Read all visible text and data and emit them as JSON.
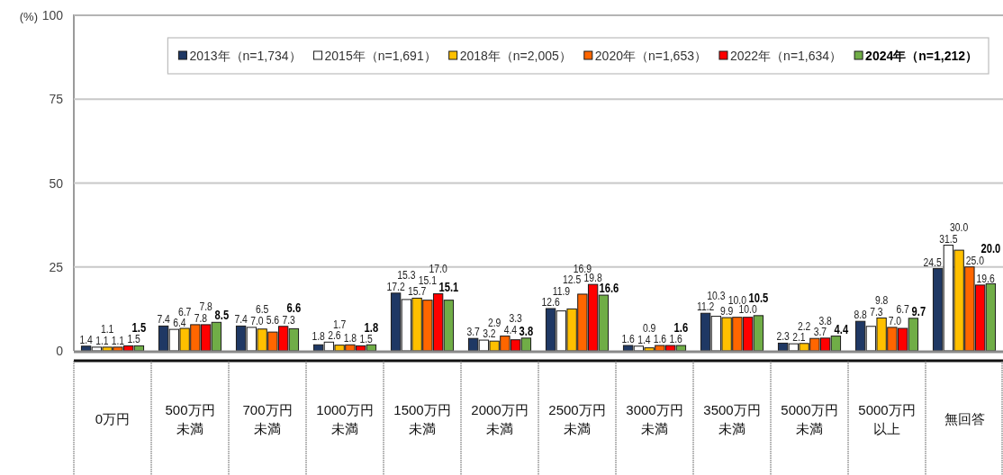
{
  "chart_data": {
    "type": "bar",
    "ylabel": "(%)",
    "categories": [
      "0万円",
      "500万円未満",
      "700万円未満",
      "1000万円未満",
      "1500万円未満",
      "2000万円未満",
      "2500万円未満",
      "3000万円未満",
      "3500万円未満",
      "5000万円未満",
      "5000万円以上",
      "無回答"
    ],
    "series": [
      {
        "name": "2013年（n=1,734）",
        "color": "#1f3864",
        "values": [
          1.4,
          7.4,
          7.4,
          1.8,
          17.2,
          3.7,
          12.6,
          1.6,
          11.2,
          2.3,
          8.8,
          24.5
        ],
        "value_labels": [
          "1.4",
          "7.4",
          "7.4",
          "1.8",
          "17.2",
          "3.7",
          "12.6",
          "1.6",
          "11.2",
          "2.3",
          "8.8",
          "24.5"
        ]
      },
      {
        "name": "2015年（n=1,691）",
        "color": "#ffffff",
        "values": [
          1.1,
          6.4,
          7.0,
          2.6,
          15.3,
          3.2,
          11.9,
          1.4,
          10.3,
          2.1,
          7.3,
          31.5
        ],
        "value_labels": [
          "1.1",
          "6.4",
          "7.0",
          "2.6",
          "15.3",
          "3.2",
          "11.9",
          "1.4",
          "10.3",
          "2.1",
          "7.3",
          "31.5"
        ]
      },
      {
        "name": "2018年（n=2,005）",
        "color": "#ffc000",
        "values": [
          1.1,
          6.7,
          6.5,
          1.7,
          15.7,
          2.9,
          12.5,
          0.9,
          9.9,
          2.2,
          9.8,
          30.0
        ],
        "value_labels": [
          "1.1",
          "6.7",
          "6.5",
          "1.7",
          "15.7",
          "2.9",
          "12.5",
          "0.9",
          "9.9",
          "2.2",
          "9.8",
          "30.0"
        ]
      },
      {
        "name": "2020年（n=1,653）",
        "color": "#ff6600",
        "values": [
          1.1,
          7.8,
          5.6,
          1.8,
          15.1,
          4.4,
          16.9,
          1.6,
          10.0,
          3.7,
          7.0,
          25.0
        ],
        "value_labels": [
          "1.1",
          "7.8",
          "5.6",
          "1.8",
          "15.1",
          "4.4",
          "16.9",
          "1.6",
          "10.0",
          "3.7",
          "7.0",
          "25.0"
        ]
      },
      {
        "name": "2022年（n=1,634）",
        "color": "#ff0000",
        "values": [
          1.5,
          7.8,
          7.3,
          1.5,
          17.0,
          3.3,
          19.8,
          1.6,
          10.0,
          3.8,
          6.7,
          19.6
        ],
        "value_labels": [
          "1.5",
          "7.8",
          "7.3",
          "1.5",
          "17.0",
          "3.3",
          "19.8",
          "1.6",
          "10.0",
          "3.8",
          "6.7",
          "19.6"
        ]
      },
      {
        "name": "2024年（n=1,212）",
        "color": "#70ad47",
        "values": [
          1.5,
          8.5,
          6.6,
          1.8,
          15.1,
          3.8,
          16.6,
          1.6,
          10.5,
          4.4,
          9.7,
          20.0
        ],
        "value_labels": [
          "1.5",
          "8.5",
          "6.6",
          "1.8",
          "15.1",
          "3.8",
          "16.6",
          "1.6",
          "10.5",
          "4.4",
          "9.7",
          "20.0"
        ]
      }
    ],
    "ylim": [
      0,
      100
    ],
    "yticks": [
      0,
      25,
      50,
      75,
      100
    ],
    "grid": "y",
    "legend": "top right"
  }
}
